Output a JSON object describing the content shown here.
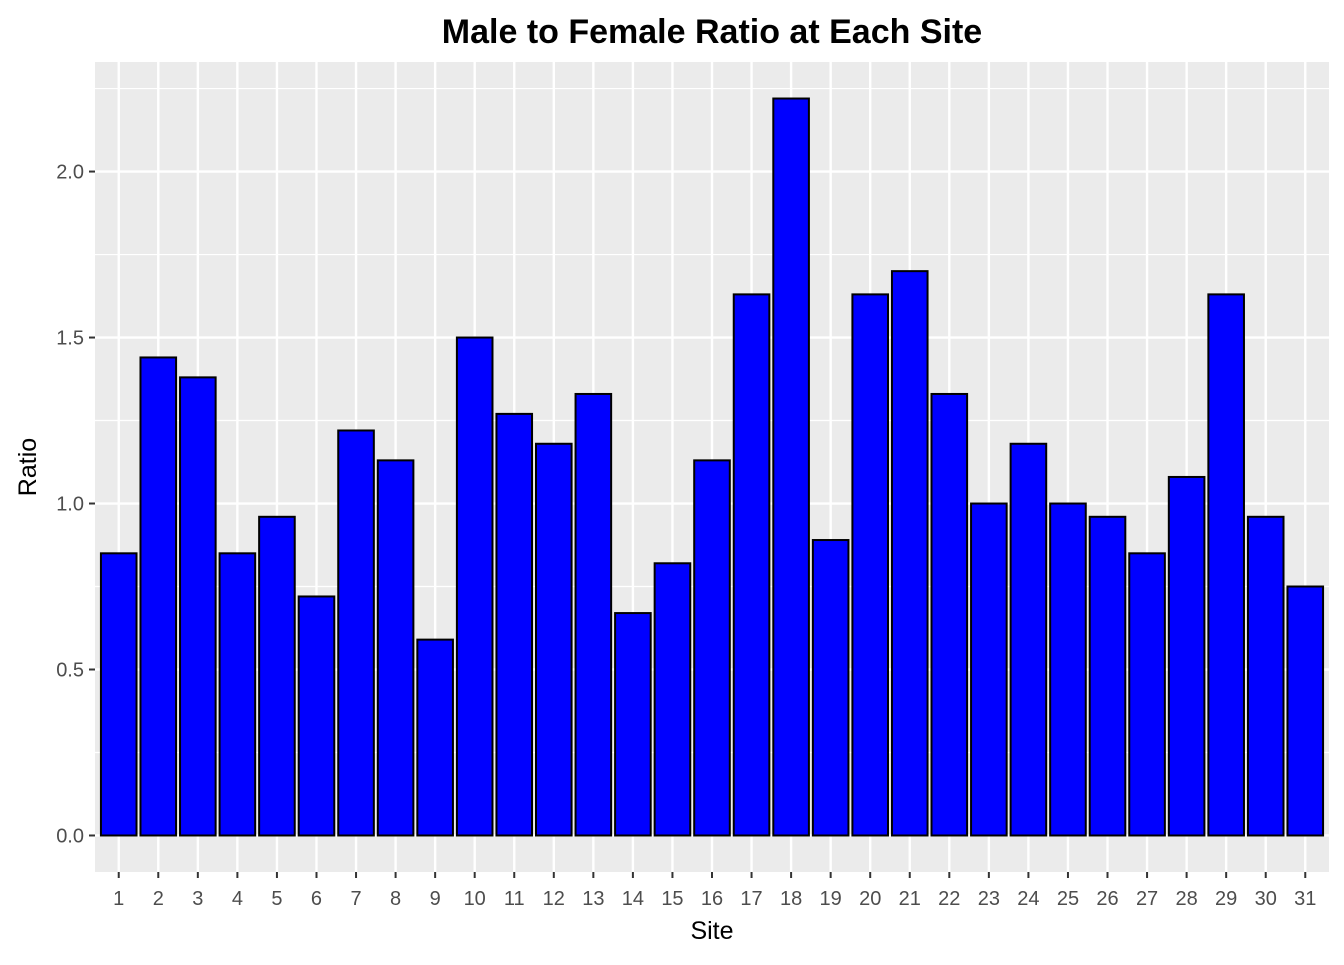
{
  "chart_data": {
    "type": "bar",
    "title": "Male to Female Ratio at Each Site",
    "xlabel": "Site",
    "ylabel": "Ratio",
    "categories": [
      "1",
      "2",
      "3",
      "4",
      "5",
      "6",
      "7",
      "8",
      "9",
      "10",
      "11",
      "12",
      "13",
      "14",
      "15",
      "16",
      "17",
      "18",
      "19",
      "20",
      "21",
      "22",
      "23",
      "24",
      "25",
      "26",
      "27",
      "28",
      "29",
      "30",
      "31"
    ],
    "values": [
      0.85,
      1.44,
      1.38,
      0.85,
      0.96,
      0.72,
      1.22,
      1.13,
      0.59,
      1.5,
      1.27,
      1.18,
      1.33,
      0.67,
      0.82,
      1.13,
      1.63,
      2.22,
      0.89,
      1.63,
      1.7,
      1.33,
      1.0,
      1.18,
      1.0,
      0.96,
      0.85,
      1.08,
      1.63,
      0.96,
      0.75
    ],
    "ylim": [
      -0.11,
      2.33
    ],
    "yticks": [
      0.0,
      0.5,
      1.0,
      1.5,
      2.0
    ],
    "ytick_labels": [
      "0.0",
      "0.5",
      "1.0",
      "1.5",
      "2.0"
    ],
    "grid": true,
    "legend": "none",
    "colors": {
      "bar_fill": "#0000ff",
      "bar_outline": "#000000",
      "panel_background": "#ebebeb",
      "grid_major": "#ffffff",
      "tick_text": "#4d4d4d"
    }
  }
}
